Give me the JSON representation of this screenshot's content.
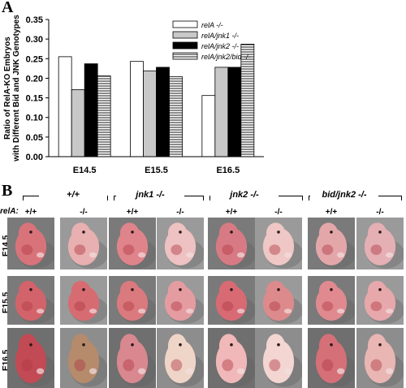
{
  "panel_a": {
    "letter": "A"
  },
  "panel_b": {
    "letter": "B",
    "rela_label": "relA:",
    "genotype_headers": [
      "+/+",
      "jnk1 -/-",
      "jnk2 -/-",
      "bid/jnk2 -/-"
    ],
    "column_labels": [
      "+/+",
      "-/-",
      "+/+",
      "-/-",
      "+/+",
      "-/-",
      "+/+",
      "-/-"
    ],
    "row_labels": [
      "E14.5",
      "E15.5",
      "E16.5"
    ]
  },
  "chart_data": {
    "type": "bar",
    "categories": [
      "E14.5",
      "E15.5",
      "E16.5"
    ],
    "series": [
      {
        "name": "relA -/-",
        "values": [
          0.255,
          0.243,
          0.156
        ],
        "fill": "#ffffff",
        "pattern": "none"
      },
      {
        "name": "relA/jnk1 -/-",
        "values": [
          0.171,
          0.219,
          0.228
        ],
        "fill": "#c8c8c8",
        "pattern": "none"
      },
      {
        "name": "relA/jnk2 -/-",
        "values": [
          0.237,
          0.228,
          0.228
        ],
        "fill": "#000000",
        "pattern": "none"
      },
      {
        "name": "relA/jnk2/bid -/-",
        "values": [
          0.206,
          0.204,
          0.287
        ],
        "fill": "#ffffff",
        "pattern": "horizontal-lines"
      }
    ],
    "title": "",
    "xlabel": "",
    "ylabel": "Ratio of RelA-KO Embryos with Different Bid and JNK Genotypes",
    "ylim": [
      0,
      0.35
    ],
    "yticks": [
      "0.00",
      "0.05",
      "0.10",
      "0.15",
      "0.20",
      "0.25",
      "0.30",
      "0.35"
    ],
    "grid": false,
    "legend_position": "top-right"
  },
  "embryo_grid": [
    [
      "#d9737a",
      "#e8b0b0",
      "#e0848c",
      "#eec2c2",
      "#d87a84",
      "#efc7c5",
      "#e3a7aa",
      "#e5b0b4"
    ],
    [
      "#d3636a",
      "#d66c72",
      "#da7a7e",
      "#e59ca0",
      "#d86a74",
      "#dd8a8c",
      "#e08a90",
      "#e7a8ab"
    ],
    [
      "#c24a54",
      "#b58b6c",
      "#d98890",
      "#efd5c8",
      "#f0b8b8",
      "#f3d5d2",
      "#d57078",
      "#e9b6b4"
    ]
  ]
}
